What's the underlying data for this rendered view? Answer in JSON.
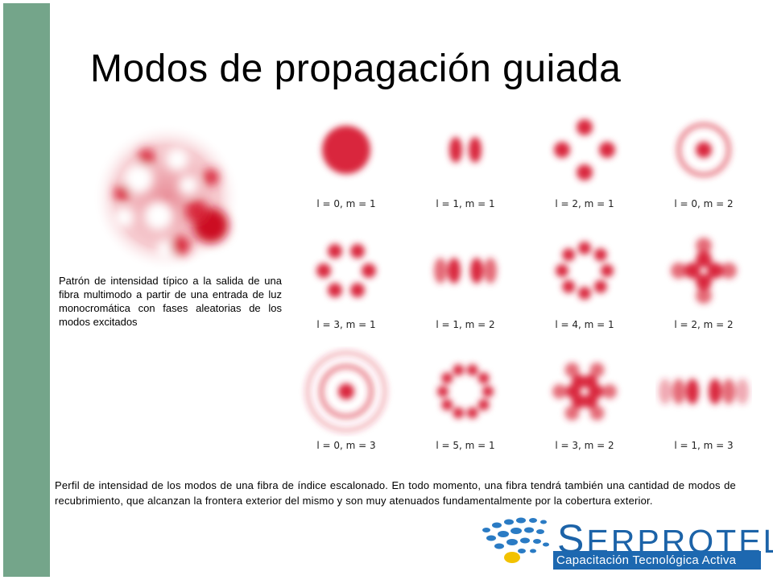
{
  "slide": {
    "title": "Modos de propagación guiada",
    "left_caption": "Patrón de intensidad típico a la salida de una fibra multimodo a partir de una entrada de luz monocromática con fases aleatorias de los modos excitados",
    "bottom_caption": "Perfil de intensidad de los modos de una fibra de índice escalonado. En todo momento, una fibra tendrá también una cantidad de modos de recubrimiento, que alcanzan la frontera exterior del mismo y son muy atenuados fundamentalmente por la cobertura exterior."
  },
  "modes": [
    {
      "label": "l = 0, m = 1",
      "l": 0,
      "m": 1
    },
    {
      "label": "l = 1, m = 1",
      "l": 1,
      "m": 1
    },
    {
      "label": "l = 2, m = 1",
      "l": 2,
      "m": 1
    },
    {
      "label": "l = 0, m = 2",
      "l": 0,
      "m": 2
    },
    {
      "label": "l = 3, m = 1",
      "l": 3,
      "m": 1
    },
    {
      "label": "l = 1, m = 2",
      "l": 1,
      "m": 2
    },
    {
      "label": "l = 4, m = 1",
      "l": 4,
      "m": 1
    },
    {
      "label": "l = 2, m = 2",
      "l": 2,
      "m": 2
    },
    {
      "label": "l = 0, m = 3",
      "l": 0,
      "m": 3
    },
    {
      "label": "l = 5, m = 1",
      "l": 5,
      "m": 1
    },
    {
      "label": "l = 3, m = 2",
      "l": 3,
      "m": 2
    },
    {
      "label": "l = 1, m = 3",
      "l": 1,
      "m": 3
    }
  ],
  "logo": {
    "first_letter": "S",
    "rest": "ERPROTEL",
    "tagline": "Capacitación Tecnológica Activa"
  },
  "colors": {
    "sidebar": "#74a58a",
    "mode_red": "#d9283c",
    "logo_blue": "#1c63a8",
    "logo_yellow": "#f2c200"
  }
}
